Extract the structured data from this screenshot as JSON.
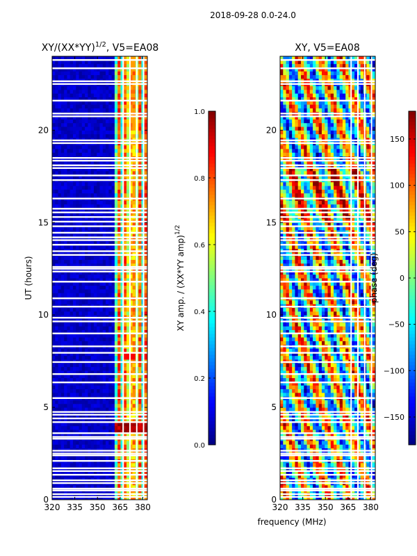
{
  "figure": {
    "suptitle": "2018-09-28 0.0-24.0",
    "xlabel": "frequency (MHz)"
  },
  "chart_data": [
    {
      "type": "heatmap",
      "id": "amp",
      "title_main": "XY/(XX*YY)",
      "title_sup": "1/2",
      "title_rest": ", V5=EA08",
      "ylabel": "UT (hours)",
      "xlim": [
        320,
        383
      ],
      "ylim": [
        0,
        24
      ],
      "xticks": [
        320,
        335,
        350,
        365,
        380
      ],
      "yticks": [
        0,
        5,
        10,
        15,
        20
      ],
      "colorbar": {
        "label_main": "XY amp. / (XX*YY amp)",
        "label_sup": "1/2",
        "range": [
          0.0,
          1.0
        ],
        "ticks": [
          0.0,
          0.2,
          0.4,
          0.6,
          0.8,
          1.0
        ],
        "tick_labels": [
          "0.0",
          "0.2",
          "0.4",
          "0.6",
          "0.8",
          "1.0"
        ],
        "colormap": "jet"
      }
    },
    {
      "type": "heatmap",
      "id": "phase",
      "title_main": "XY, V5=EA08",
      "ylabel": "",
      "xlim": [
        320,
        383
      ],
      "ylim": [
        0,
        24
      ],
      "xticks": [
        320,
        335,
        350,
        365,
        380
      ],
      "yticks": [
        0,
        5,
        10,
        15,
        20
      ],
      "colorbar": {
        "label_main": "phase (deg)",
        "range": [
          -180,
          180
        ],
        "ticks": [
          -150,
          -100,
          -50,
          0,
          50,
          100,
          150
        ],
        "tick_labels": [
          "−150",
          "−100",
          "−50",
          "0",
          "50",
          "100",
          "150"
        ],
        "colormap": "jet"
      }
    }
  ],
  "flagged_rows_ut": [
    0.15,
    0.3,
    0.5,
    0.6,
    0.9,
    1.05,
    1.35,
    1.55,
    1.7,
    2.1,
    2.4,
    2.5,
    2.65,
    3.3,
    3.4,
    3.6,
    4.2,
    4.4,
    4.6,
    4.75,
    5.5,
    6.35,
    6.8,
    7.45,
    7.95,
    8.3,
    9.0,
    9.65,
    9.85,
    10.45,
    10.9,
    11.8,
    12.35,
    12.5,
    12.6,
    13.25,
    13.45,
    13.8,
    14.05,
    14.2,
    14.45,
    14.8,
    15.05,
    15.3,
    15.55,
    15.75,
    16.3,
    17.3,
    17.55,
    17.95,
    18.1,
    18.35,
    18.5,
    19.3,
    19.45,
    20.75,
    20.9,
    21.6,
    22.5,
    22.65,
    23.35,
    23.8
  ],
  "flagged_cols_mhz": [
    367.0,
    371.5,
    376.0,
    380.5
  ]
}
